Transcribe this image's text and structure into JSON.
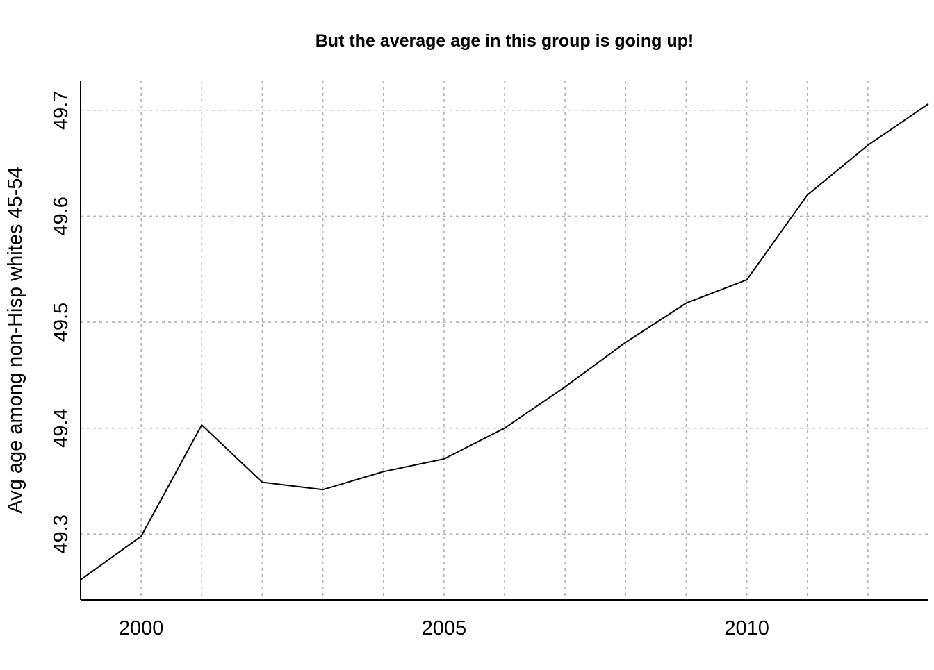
{
  "chart_data": {
    "type": "line",
    "title": "But the average age in this group is going up!",
    "xlabel": "",
    "ylabel": "Avg age among non-Hisp whites 45-54",
    "xlim": [
      1999,
      2013
    ],
    "ylim": [
      49.238,
      49.728
    ],
    "x_ticks": [
      2000,
      2005,
      2010
    ],
    "x_tick_labels": [
      "2000",
      "2005",
      "2010"
    ],
    "y_ticks": [
      49.3,
      49.4,
      49.5,
      49.6,
      49.7
    ],
    "y_tick_labels": [
      "49.3",
      "49.4",
      "49.5",
      "49.6",
      "49.7"
    ],
    "x_grid": [
      2000,
      2001,
      2002,
      2003,
      2004,
      2005,
      2006,
      2007,
      2008,
      2009,
      2010,
      2011,
      2012
    ],
    "grid": true,
    "line_color": "#000000",
    "grid_color": "#b3b3b3",
    "series": [
      {
        "x": [
          1999,
          2000,
          2001,
          2002,
          2003,
          2004,
          2005,
          2006,
          2007,
          2008,
          2009,
          2010,
          2011,
          2012,
          2013
        ],
        "values": [
          49.257,
          49.298,
          49.403,
          49.349,
          49.342,
          49.359,
          49.371,
          49.4,
          49.439,
          49.481,
          49.518,
          49.54,
          49.62,
          49.667,
          49.706
        ]
      }
    ]
  }
}
